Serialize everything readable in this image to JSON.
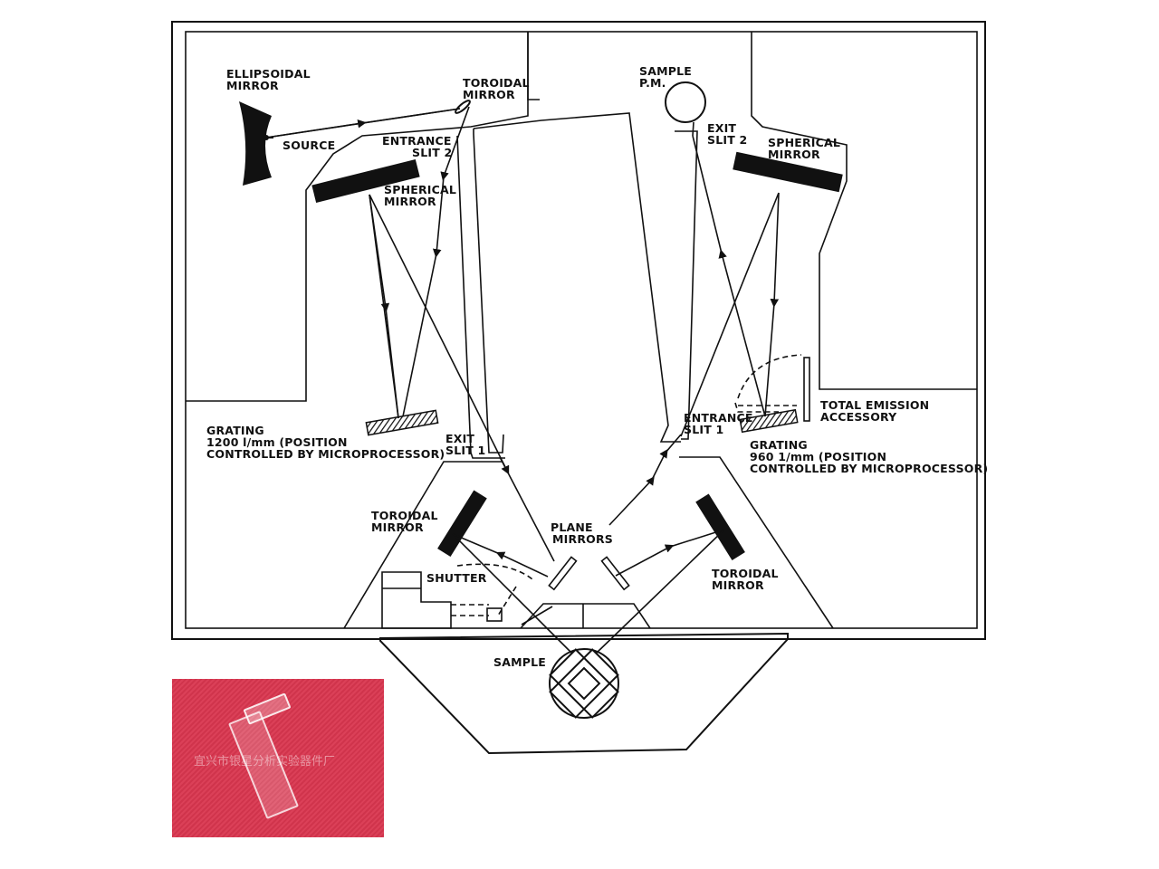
{
  "labels": {
    "ellipsoidal_mirror": [
      "ELLIPSOIDAL",
      "MIRROR"
    ],
    "toroidal_mirror_top": [
      "TOROIDAL",
      "MIRROR"
    ],
    "source": "SOURCE",
    "entrance_slit_2": [
      "ENTRANCE",
      "SLIT 2"
    ],
    "spherical_mirror_left": [
      "SPHERICAL",
      "MIRROR"
    ],
    "sample_pm": [
      "SAMPLE",
      "P.M."
    ],
    "exit_slit_2": [
      "EXIT",
      "SLIT 2"
    ],
    "spherical_mirror_right": [
      "SPHERICAL",
      "MIRROR"
    ],
    "grating_left": [
      "GRATING",
      "1200 l/mm (POSITION",
      "CONTROLLED BY MICROPROCESSOR)"
    ],
    "exit_slit_1": [
      "EXIT",
      "SLIT 1"
    ],
    "entrance_slit_1": [
      "ENTRANCE",
      "SLIT 1"
    ],
    "total_emission": [
      "TOTAL EMISSION",
      "ACCESSORY"
    ],
    "grating_right": [
      "GRATING",
      "960 1/mm (POSITION",
      "CONTROLLED BY MICROPROCESSOR)"
    ],
    "toroidal_mirror_left": [
      "TOROIDAL",
      "MIRROR"
    ],
    "plane_mirrors": [
      "PLANE",
      "MIRRORS"
    ],
    "shutter": "SHUTTER",
    "toroidal_mirror_right": [
      "TOROIDAL",
      "MIRROR"
    ],
    "sample": "SAMPLE"
  },
  "photo": {
    "watermark": "宜兴市银星分析实验器件厂",
    "background_color": "#d9364f"
  }
}
